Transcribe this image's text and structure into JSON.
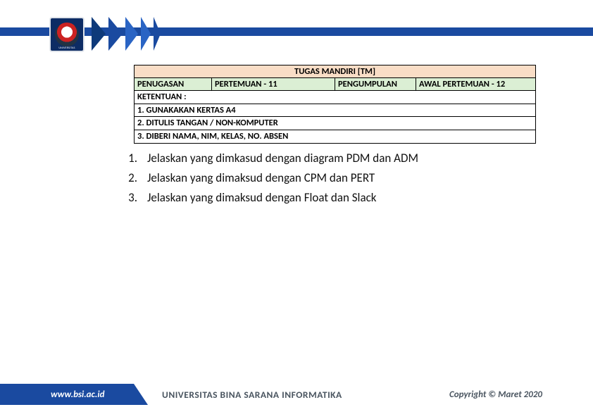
{
  "header": {
    "logo_caption": "UNIVERSITAS",
    "chevrons": [
      {
        "color": "#0e3a7a",
        "w": 20
      },
      {
        "color": "#1a4aa0",
        "w": 20
      },
      {
        "color": "#2a64c4",
        "w": 18
      },
      {
        "color": "#2a64c4",
        "w": 14
      },
      {
        "color": "#1a4aa0",
        "w": 10
      }
    ]
  },
  "table": {
    "title": "TUGAS MANDIRI [TM]",
    "cols": {
      "c1_label": "PENUGASAN",
      "c2_label": "PERTEMUAN - 11",
      "c3_label": "PENGUMPULAN",
      "c4_label": "AWAL PERTEMUAN - 12"
    },
    "col_widths": {
      "c1": 110,
      "c2": 175,
      "c3": 115,
      "c4": 170
    },
    "rules": [
      "KETENTUAN :",
      "1. GUNAKAKAN KERTAS A4",
      "2. DITULIS TANGAN / NON-KOMPUTER",
      "3. DIBERI NAMA, NIM, KELAS, NO. ABSEN"
    ],
    "colors": {
      "title_bg": "#f9ddc6",
      "header_bg": "#dbefd4",
      "border": "#000000"
    }
  },
  "questions": [
    {
      "n": "1.",
      "text": "Jelaskan yang dimkasud dengan diagram PDM dan ADM"
    },
    {
      "n": "2.",
      "text": "Jelaskan yang dimaksud dengan CPM dan PERT"
    },
    {
      "n": "3.",
      "text": "Jelaskan yang dimaksud dengan Float dan Slack"
    }
  ],
  "footer": {
    "url": "www.bsi.ac.id",
    "university": "UNIVERSITAS BINA SARANA INFORMATIKA",
    "copyright": "Copyright © Maret 2020",
    "colors": {
      "blue": "#1a4aa0",
      "grey": "#d7dde2",
      "grey_text": "#4a5560"
    }
  }
}
